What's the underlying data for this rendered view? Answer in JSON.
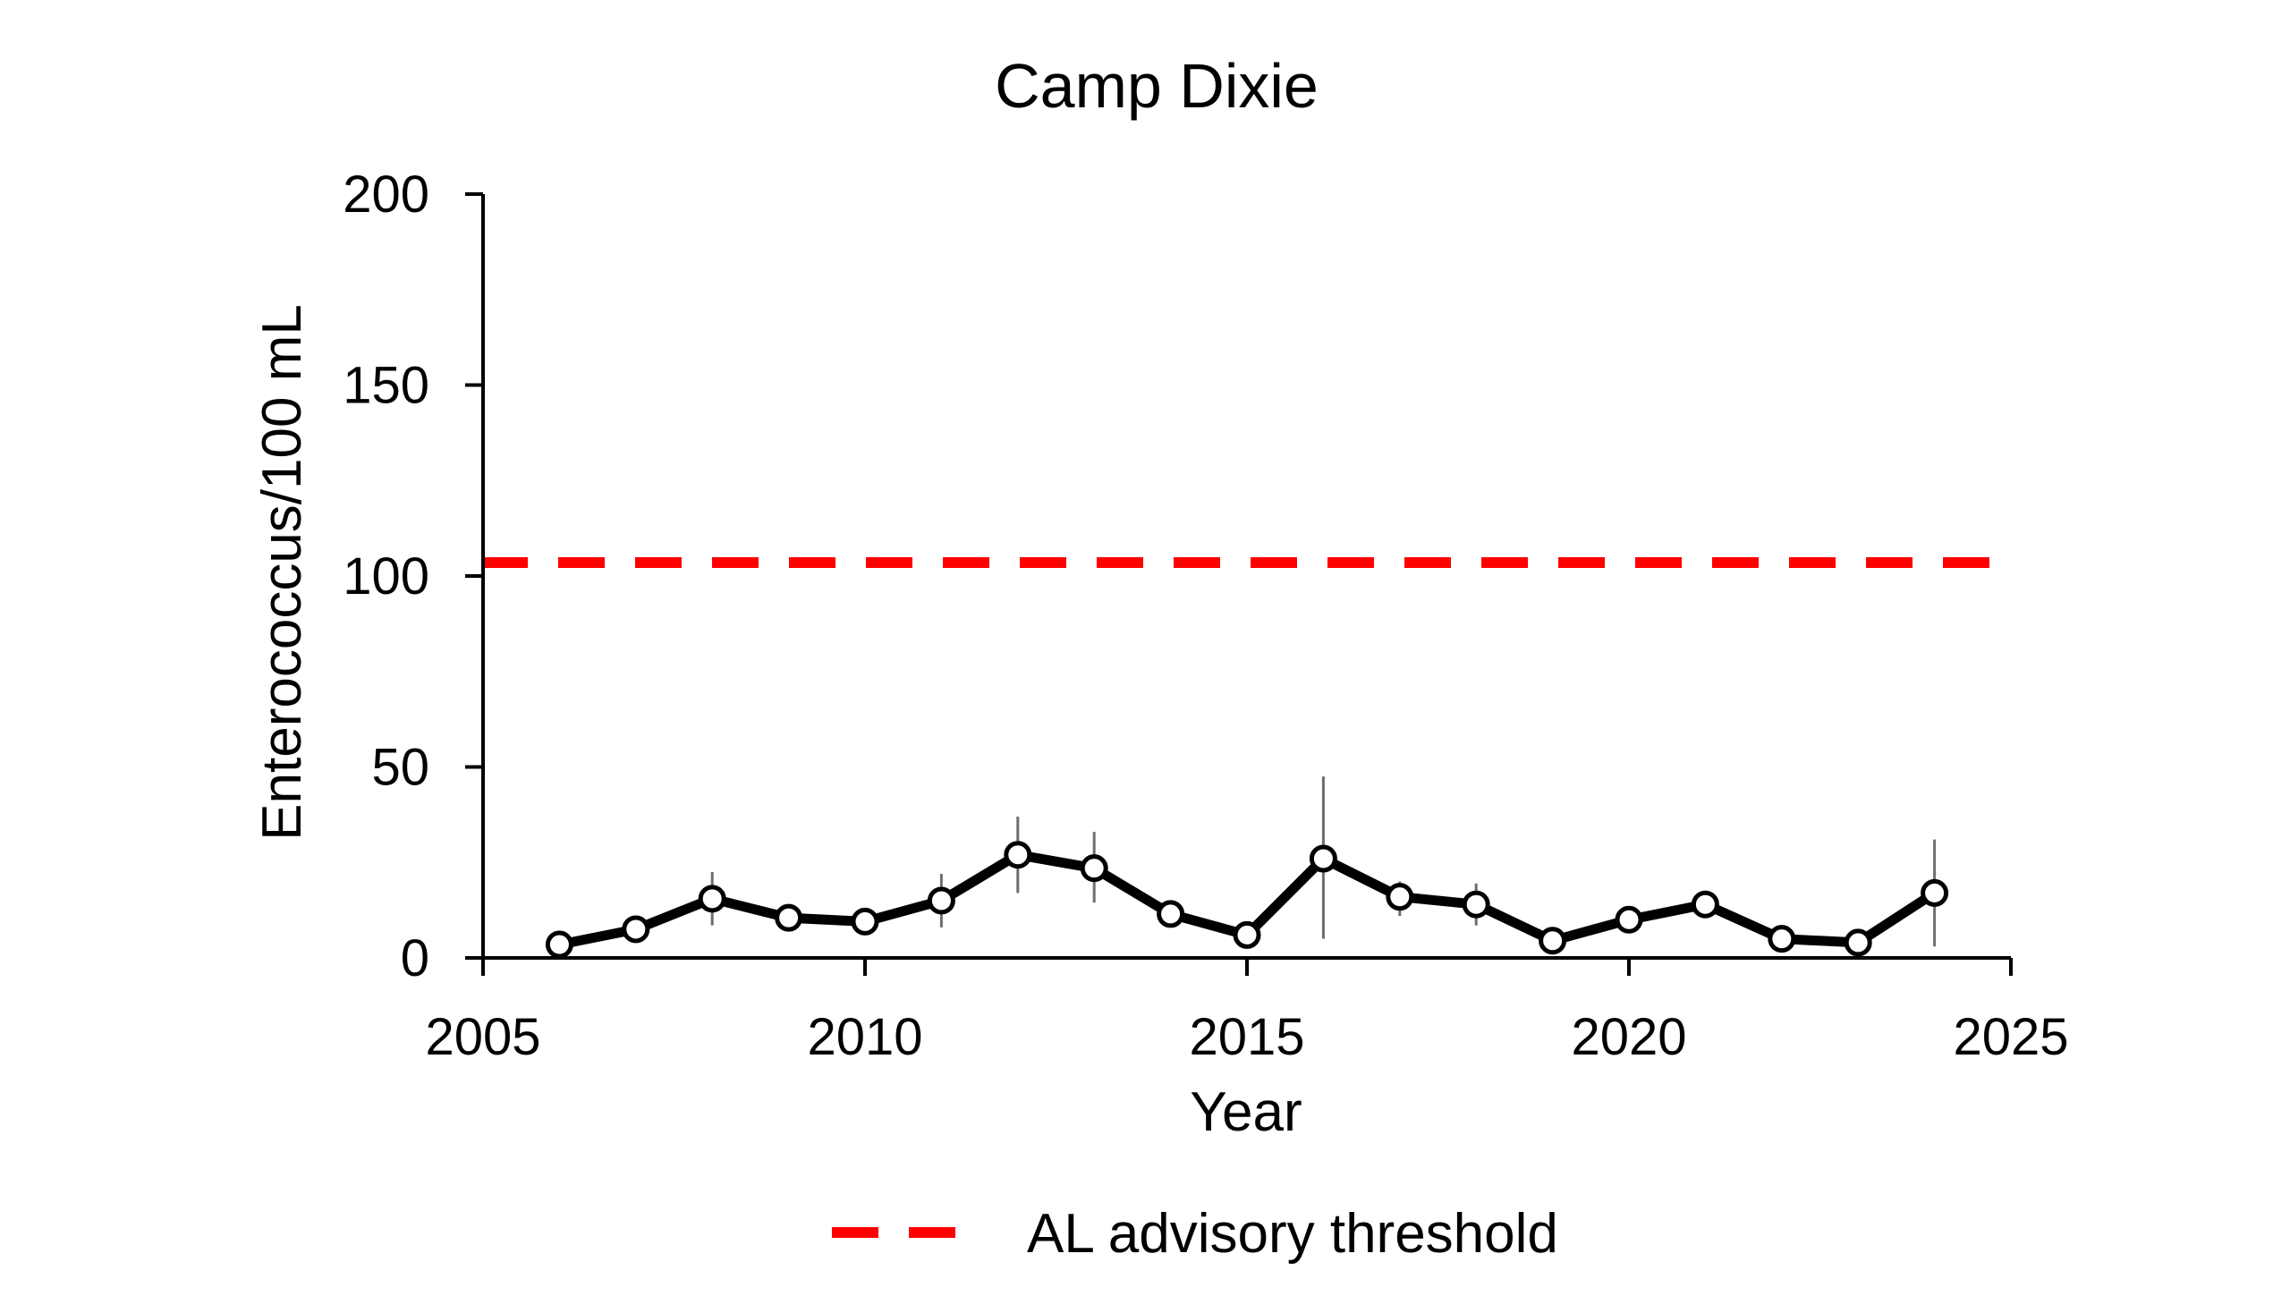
{
  "chart_data": {
    "type": "line",
    "title": "Camp Dixie",
    "xlabel": "Year",
    "ylabel": "Enterococcus/100 mL",
    "xlim": [
      2005,
      2025
    ],
    "ylim": [
      0,
      200
    ],
    "xticks": [
      2005,
      2010,
      2015,
      2020,
      2025
    ],
    "yticks": [
      0,
      50,
      100,
      150,
      200
    ],
    "grid": false,
    "legend_position": "bottom-center",
    "series": [
      {
        "color": "#000000",
        "marker": "open-circle",
        "x": [
          2006,
          2007,
          2008,
          2009,
          2010,
          2011,
          2012,
          2013,
          2014,
          2015,
          2016,
          2017,
          2018,
          2019,
          2020,
          2021,
          2022,
          2023,
          2024
        ],
        "y": [
          3.5,
          7.5,
          15.5,
          10.5,
          9.5,
          15,
          27,
          23.5,
          11.5,
          6,
          26,
          16,
          14,
          4.5,
          10,
          14,
          5,
          4,
          17
        ],
        "error_low": [
          3.5,
          6.5,
          8.5,
          7,
          8,
          8,
          17,
          14.5,
          10,
          5.5,
          5,
          11,
          8.5,
          4,
          9,
          13,
          4.5,
          3,
          3
        ],
        "error_high": [
          4,
          8.5,
          22.5,
          14,
          11,
          22,
          37,
          33,
          13,
          7,
          47.5,
          20,
          19.5,
          5.5,
          11,
          15,
          5.5,
          5,
          31
        ]
      }
    ],
    "reference_lines": [
      {
        "name": "AL advisory threshold",
        "y": 103.5,
        "color": "#ff0000",
        "style": "dashed"
      }
    ]
  }
}
